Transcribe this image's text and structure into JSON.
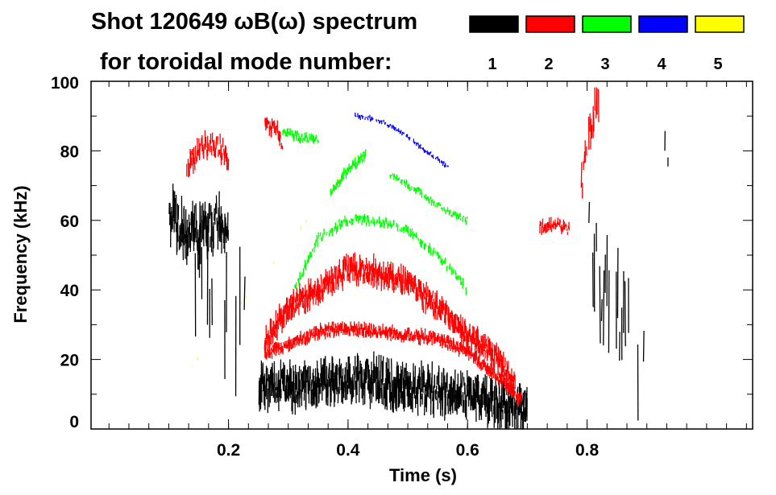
{
  "chart_data": {
    "type": "heatmap",
    "title_line1": "Shot 120649 ωB(ω) spectrum",
    "title_line2": "for toroidal mode number:",
    "xlabel": "Time (s)",
    "ylabel": "Frequency (kHz)",
    "xlim": [
      -0.03,
      1.077
    ],
    "ylim": [
      0,
      100
    ],
    "xticks": [
      0.2,
      0.4,
      0.6,
      0.8
    ],
    "xtick_labels": [
      "0.2",
      "0.4",
      "0.6",
      "0.8"
    ],
    "yticks": [
      0,
      20,
      40,
      60,
      80,
      100
    ],
    "ytick_labels": [
      "0",
      "20",
      "40",
      "60",
      "80",
      "100"
    ],
    "legend": [
      {
        "label": "1",
        "color": "#000000"
      },
      {
        "label": "2",
        "color": "#ff0000"
      },
      {
        "label": "3",
        "color": "#00ff00"
      },
      {
        "label": "4",
        "color": "#0000ff"
      },
      {
        "label": "5",
        "color": "#ffff00"
      }
    ],
    "series": [
      {
        "mode": "1",
        "color": "#000000",
        "tracks": [
          {
            "points": [
              [
                0.25,
                12
              ],
              [
                0.3,
                12
              ],
              [
                0.35,
                13
              ],
              [
                0.4,
                14
              ],
              [
                0.45,
                14
              ],
              [
                0.5,
                12
              ],
              [
                0.55,
                11
              ],
              [
                0.6,
                10
              ],
              [
                0.65,
                8
              ],
              [
                0.7,
                5
              ]
            ],
            "spread": 8,
            "density": 1.0
          },
          {
            "points": [
              [
                0.1,
                62
              ],
              [
                0.12,
                57
              ],
              [
                0.15,
                55
              ],
              [
                0.18,
                60
              ],
              [
                0.2,
                55
              ]
            ],
            "spread": 10,
            "density": 0.8
          },
          {
            "points": [
              [
                0.14,
                40
              ],
              [
                0.2,
                35
              ],
              [
                0.23,
                30
              ]
            ],
            "spread": 25,
            "density": 0.25
          },
          {
            "points": [
              [
                0.8,
                55
              ],
              [
                0.83,
                40
              ],
              [
                0.86,
                30
              ],
              [
                0.9,
                15
              ]
            ],
            "spread": 20,
            "density": 0.3
          },
          {
            "points": [
              [
                0.93,
                85
              ],
              [
                0.94,
                65
              ]
            ],
            "spread": 6,
            "density": 0.4
          }
        ]
      },
      {
        "mode": "2",
        "color": "#ff0000",
        "tracks": [
          {
            "points": [
              [
                0.26,
                25
              ],
              [
                0.3,
                35
              ],
              [
                0.35,
                40
              ],
              [
                0.4,
                46
              ],
              [
                0.45,
                45
              ],
              [
                0.5,
                42
              ],
              [
                0.55,
                35
              ],
              [
                0.6,
                27
              ],
              [
                0.65,
                20
              ],
              [
                0.68,
                12
              ]
            ],
            "spread": 5,
            "density": 1.0
          },
          {
            "points": [
              [
                0.26,
                22
              ],
              [
                0.3,
                24
              ],
              [
                0.35,
                28
              ],
              [
                0.4,
                29
              ],
              [
                0.45,
                28
              ],
              [
                0.5,
                27
              ],
              [
                0.55,
                26
              ],
              [
                0.6,
                22
              ],
              [
                0.65,
                15
              ],
              [
                0.69,
                8
              ]
            ],
            "spread": 2.5,
            "density": 1.0
          },
          {
            "points": [
              [
                0.13,
                76
              ],
              [
                0.15,
                80
              ],
              [
                0.18,
                82
              ],
              [
                0.2,
                78
              ]
            ],
            "spread": 5,
            "density": 0.7
          },
          {
            "points": [
              [
                0.26,
                88
              ],
              [
                0.28,
                86
              ],
              [
                0.29,
                82
              ]
            ],
            "spread": 3,
            "density": 0.8
          },
          {
            "points": [
              [
                0.72,
                58
              ],
              [
                0.75,
                59
              ],
              [
                0.77,
                57
              ]
            ],
            "spread": 2.5,
            "density": 0.8
          },
          {
            "points": [
              [
                0.79,
                70
              ],
              [
                0.8,
                85
              ],
              [
                0.82,
                95
              ]
            ],
            "spread": 8,
            "density": 0.5
          }
        ]
      },
      {
        "mode": "3",
        "color": "#00ff00",
        "tracks": [
          {
            "points": [
              [
                0.31,
                40
              ],
              [
                0.35,
                55
              ],
              [
                0.4,
                60
              ],
              [
                0.45,
                60
              ],
              [
                0.5,
                57
              ],
              [
                0.55,
                50
              ],
              [
                0.6,
                40
              ]
            ],
            "spread": 2,
            "density": 0.6
          },
          {
            "points": [
              [
                0.37,
                68
              ],
              [
                0.4,
                75
              ],
              [
                0.43,
                79
              ]
            ],
            "spread": 2,
            "density": 0.8
          },
          {
            "points": [
              [
                0.47,
                73
              ],
              [
                0.52,
                68
              ],
              [
                0.56,
                63
              ],
              [
                0.6,
                60
              ]
            ],
            "spread": 1.5,
            "density": 0.6
          },
          {
            "points": [
              [
                0.29,
                86
              ],
              [
                0.32,
                84
              ],
              [
                0.35,
                83
              ]
            ],
            "spread": 2,
            "density": 0.7
          }
        ]
      },
      {
        "mode": "4",
        "color": "#0000ff",
        "tracks": [
          {
            "points": [
              [
                0.41,
                90
              ],
              [
                0.45,
                89
              ],
              [
                0.5,
                84
              ],
              [
                0.53,
                80
              ],
              [
                0.57,
                75
              ]
            ],
            "spread": 1,
            "density": 0.6
          }
        ]
      },
      {
        "mode": "5",
        "color": "#ffff00",
        "tracks": [
          {
            "points": [
              [
                0.13,
                16
              ],
              [
                0.42,
                80
              ]
            ],
            "spread": 1,
            "density": 0.1
          }
        ]
      }
    ]
  }
}
